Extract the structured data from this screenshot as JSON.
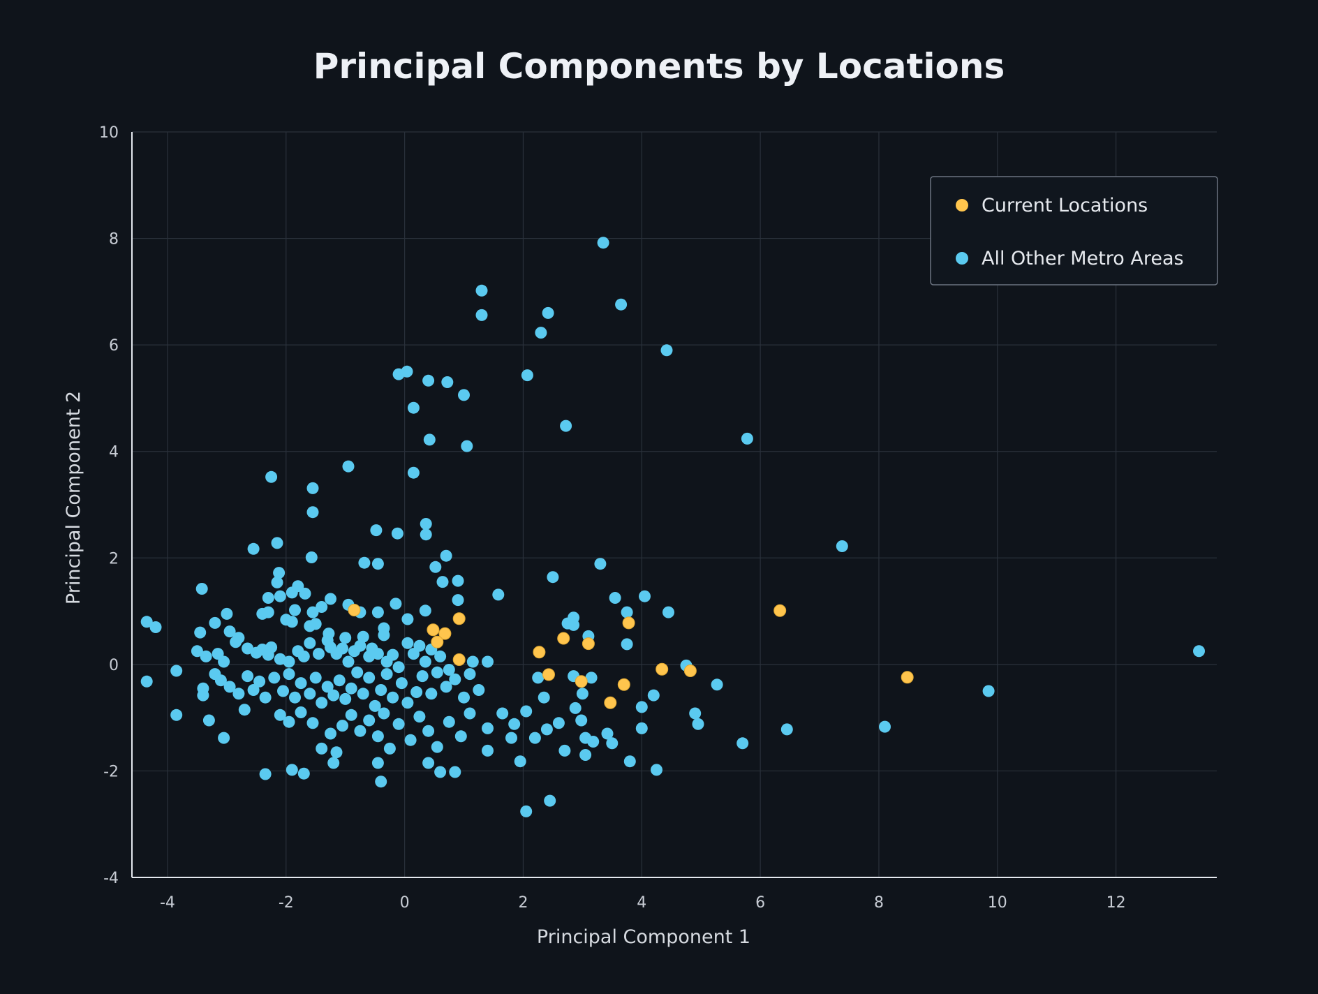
{
  "chart_data": {
    "type": "scatter",
    "title": "Principal Components by Locations",
    "xlabel": "Principal Component 1",
    "ylabel": "Principal Component 2",
    "xlim": [
      -4.6,
      13.7
    ],
    "ylim": [
      -4,
      10
    ],
    "x_ticks": [
      -4,
      -2,
      0,
      2,
      4,
      6,
      8,
      10,
      12
    ],
    "y_ticks": [
      -4,
      -2,
      0,
      2,
      4,
      6,
      8,
      10
    ],
    "grid": true,
    "legend_position": "top-right",
    "series": [
      {
        "name": "Current Locations",
        "color": "#ffc54d",
        "points": [
          [
            -0.85,
            1.02
          ],
          [
            0.48,
            0.65
          ],
          [
            0.68,
            0.58
          ],
          [
            0.92,
            0.86
          ],
          [
            0.55,
            0.42
          ],
          [
            0.92,
            0.09
          ],
          [
            2.27,
            0.23
          ],
          [
            2.68,
            0.49
          ],
          [
            3.1,
            0.39
          ],
          [
            3.78,
            0.78
          ],
          [
            2.43,
            -0.19
          ],
          [
            2.98,
            -0.32
          ],
          [
            3.7,
            -0.38
          ],
          [
            3.47,
            -0.72
          ],
          [
            4.34,
            -0.09
          ],
          [
            4.82,
            -0.12
          ],
          [
            6.33,
            1.01
          ],
          [
            8.48,
            -0.24
          ]
        ]
      },
      {
        "name": "All Other Metro Areas",
        "color": "#5bcaf0",
        "points": [
          [
            3.35,
            7.92
          ],
          [
            1.3,
            7.02
          ],
          [
            1.3,
            6.56
          ],
          [
            2.42,
            6.6
          ],
          [
            2.3,
            6.23
          ],
          [
            3.65,
            6.76
          ],
          [
            4.42,
            5.9
          ],
          [
            -0.1,
            5.45
          ],
          [
            0.04,
            5.5
          ],
          [
            0.15,
            4.82
          ],
          [
            0.4,
            5.33
          ],
          [
            0.72,
            5.3
          ],
          [
            1.0,
            5.06
          ],
          [
            2.07,
            5.43
          ],
          [
            2.72,
            4.48
          ],
          [
            0.42,
            4.22
          ],
          [
            1.05,
            4.1
          ],
          [
            5.78,
            4.24
          ],
          [
            -0.95,
            3.72
          ],
          [
            -2.25,
            3.52
          ],
          [
            -1.55,
            3.31
          ],
          [
            -1.55,
            2.86
          ],
          [
            0.15,
            3.6
          ],
          [
            -0.48,
            2.52
          ],
          [
            -0.12,
            2.46
          ],
          [
            0.36,
            2.64
          ],
          [
            0.36,
            2.44
          ],
          [
            -2.55,
            2.17
          ],
          [
            -2.15,
            2.28
          ],
          [
            -1.57,
            2.01
          ],
          [
            -0.68,
            1.91
          ],
          [
            -0.45,
            1.89
          ],
          [
            0.52,
            1.83
          ],
          [
            0.7,
            2.04
          ],
          [
            3.3,
            1.89
          ],
          [
            7.38,
            2.22
          ],
          [
            -2.12,
            1.72
          ],
          [
            -2.15,
            1.54
          ],
          [
            -1.9,
            1.35
          ],
          [
            -1.8,
            1.47
          ],
          [
            -1.68,
            1.33
          ],
          [
            -2.3,
            1.25
          ],
          [
            -2.1,
            1.28
          ],
          [
            -3.42,
            1.42
          ],
          [
            0.9,
            1.57
          ],
          [
            0.64,
            1.55
          ],
          [
            2.5,
            1.64
          ],
          [
            1.58,
            1.31
          ],
          [
            3.55,
            1.25
          ],
          [
            4.05,
            1.28
          ],
          [
            -1.25,
            1.23
          ],
          [
            -1.4,
            1.08
          ],
          [
            -1.55,
            0.98
          ],
          [
            -1.85,
            1.02
          ],
          [
            -2.4,
            0.95
          ],
          [
            -2.3,
            0.98
          ],
          [
            -0.95,
            1.12
          ],
          [
            -0.75,
            0.98
          ],
          [
            -0.15,
            1.14
          ],
          [
            0.35,
            1.01
          ],
          [
            0.9,
            1.21
          ],
          [
            -0.45,
            0.98
          ],
          [
            3.75,
            0.98
          ],
          [
            4.45,
            0.98
          ],
          [
            -4.35,
            0.8
          ],
          [
            -4.2,
            0.7
          ],
          [
            -3.45,
            0.6
          ],
          [
            -3.2,
            0.78
          ],
          [
            -3.0,
            0.95
          ],
          [
            -2.95,
            0.62
          ],
          [
            -2.8,
            0.5
          ],
          [
            -2.0,
            0.84
          ],
          [
            -1.9,
            0.8
          ],
          [
            -1.6,
            0.72
          ],
          [
            -1.5,
            0.76
          ],
          [
            -1.28,
            0.58
          ],
          [
            -1.0,
            0.5
          ],
          [
            -0.7,
            0.52
          ],
          [
            -0.35,
            0.68
          ],
          [
            -0.35,
            0.55
          ],
          [
            0.05,
            0.85
          ],
          [
            2.75,
            0.77
          ],
          [
            2.85,
            0.74
          ],
          [
            2.85,
            0.88
          ],
          [
            3.1,
            0.53
          ],
          [
            3.75,
            0.38
          ],
          [
            -3.5,
            0.25
          ],
          [
            -3.15,
            0.2
          ],
          [
            -3.35,
            0.15
          ],
          [
            -3.05,
            0.05
          ],
          [
            -2.85,
            0.42
          ],
          [
            -2.65,
            0.3
          ],
          [
            -2.5,
            0.22
          ],
          [
            -2.4,
            0.28
          ],
          [
            -2.3,
            0.18
          ],
          [
            -2.25,
            0.32
          ],
          [
            -2.1,
            0.1
          ],
          [
            -1.95,
            0.05
          ],
          [
            -1.8,
            0.25
          ],
          [
            -1.7,
            0.15
          ],
          [
            -1.6,
            0.4
          ],
          [
            -1.45,
            0.2
          ],
          [
            -1.3,
            0.45
          ],
          [
            -1.25,
            0.32
          ],
          [
            -1.15,
            0.2
          ],
          [
            -1.05,
            0.3
          ],
          [
            -0.95,
            0.05
          ],
          [
            -0.85,
            0.25
          ],
          [
            -0.75,
            0.35
          ],
          [
            -0.6,
            0.15
          ],
          [
            -0.55,
            0.3
          ],
          [
            -0.45,
            0.2
          ],
          [
            -0.3,
            0.05
          ],
          [
            -0.2,
            0.18
          ],
          [
            -0.1,
            -0.05
          ],
          [
            0.05,
            0.4
          ],
          [
            0.15,
            0.2
          ],
          [
            0.25,
            0.35
          ],
          [
            0.35,
            0.05
          ],
          [
            0.45,
            0.28
          ],
          [
            0.6,
            0.15
          ],
          [
            0.75,
            -0.1
          ],
          [
            1.15,
            0.05
          ],
          [
            1.4,
            0.05
          ],
          [
            -4.35,
            -0.32
          ],
          [
            -3.85,
            -0.12
          ],
          [
            -3.4,
            -0.45
          ],
          [
            -3.4,
            -0.58
          ],
          [
            -3.2,
            -0.18
          ],
          [
            -3.1,
            -0.3
          ],
          [
            -2.95,
            -0.42
          ],
          [
            -2.8,
            -0.55
          ],
          [
            -2.65,
            -0.22
          ],
          [
            -2.55,
            -0.48
          ],
          [
            -2.45,
            -0.32
          ],
          [
            -2.35,
            -0.62
          ],
          [
            -2.2,
            -0.25
          ],
          [
            -2.05,
            -0.5
          ],
          [
            -1.95,
            -0.18
          ],
          [
            -1.85,
            -0.62
          ],
          [
            -1.75,
            -0.35
          ],
          [
            -1.6,
            -0.55
          ],
          [
            -1.5,
            -0.25
          ],
          [
            -1.4,
            -0.72
          ],
          [
            -1.3,
            -0.42
          ],
          [
            -1.2,
            -0.58
          ],
          [
            -1.1,
            -0.3
          ],
          [
            -1.0,
            -0.65
          ],
          [
            -0.9,
            -0.45
          ],
          [
            -0.8,
            -0.15
          ],
          [
            -0.7,
            -0.55
          ],
          [
            -0.6,
            -0.25
          ],
          [
            -0.5,
            -0.78
          ],
          [
            -0.4,
            -0.48
          ],
          [
            -0.3,
            -0.18
          ],
          [
            -0.2,
            -0.62
          ],
          [
            -0.05,
            -0.35
          ],
          [
            0.05,
            -0.72
          ],
          [
            0.2,
            -0.52
          ],
          [
            0.3,
            -0.22
          ],
          [
            0.45,
            -0.55
          ],
          [
            0.55,
            -0.15
          ],
          [
            0.7,
            -0.42
          ],
          [
            0.85,
            -0.28
          ],
          [
            1.0,
            -0.62
          ],
          [
            1.1,
            -0.18
          ],
          [
            1.25,
            -0.48
          ],
          [
            2.25,
            -0.25
          ],
          [
            2.35,
            -0.62
          ],
          [
            2.85,
            -0.22
          ],
          [
            3.0,
            -0.55
          ],
          [
            3.15,
            -0.25
          ],
          [
            4.2,
            -0.58
          ],
          [
            4.75,
            -0.02
          ],
          [
            5.27,
            -0.38
          ],
          [
            -3.85,
            -0.95
          ],
          [
            -3.3,
            -1.05
          ],
          [
            -3.05,
            -1.38
          ],
          [
            -2.7,
            -0.85
          ],
          [
            -2.1,
            -0.95
          ],
          [
            -1.95,
            -1.08
          ],
          [
            -1.75,
            -0.9
          ],
          [
            -1.55,
            -1.1
          ],
          [
            -1.4,
            -1.58
          ],
          [
            -1.25,
            -1.3
          ],
          [
            -1.15,
            -1.65
          ],
          [
            -1.05,
            -1.15
          ],
          [
            -0.9,
            -0.95
          ],
          [
            -0.75,
            -1.25
          ],
          [
            -0.6,
            -1.05
          ],
          [
            -0.45,
            -1.35
          ],
          [
            -0.35,
            -0.92
          ],
          [
            -0.25,
            -1.58
          ],
          [
            -0.1,
            -1.12
          ],
          [
            0.1,
            -1.42
          ],
          [
            0.25,
            -0.98
          ],
          [
            0.4,
            -1.25
          ],
          [
            0.55,
            -1.55
          ],
          [
            0.75,
            -1.08
          ],
          [
            0.95,
            -1.35
          ],
          [
            1.1,
            -0.92
          ],
          [
            1.4,
            -1.2
          ],
          [
            1.65,
            -0.92
          ],
          [
            1.8,
            -1.38
          ],
          [
            1.85,
            -1.12
          ],
          [
            2.05,
            -0.88
          ],
          [
            2.2,
            -1.38
          ],
          [
            2.4,
            -1.22
          ],
          [
            2.6,
            -1.1
          ],
          [
            2.88,
            -0.82
          ],
          [
            2.98,
            -1.05
          ],
          [
            3.05,
            -1.38
          ],
          [
            3.18,
            -1.45
          ],
          [
            3.42,
            -1.3
          ],
          [
            4.0,
            -0.8
          ],
          [
            4.0,
            -1.2
          ],
          [
            4.9,
            -0.92
          ],
          [
            4.95,
            -1.12
          ],
          [
            5.7,
            -1.48
          ],
          [
            6.45,
            -1.22
          ],
          [
            8.1,
            -1.17
          ],
          [
            9.85,
            -0.5
          ],
          [
            13.4,
            0.25
          ],
          [
            -2.35,
            -2.06
          ],
          [
            -1.9,
            -1.98
          ],
          [
            -1.7,
            -2.05
          ],
          [
            -1.2,
            -1.85
          ],
          [
            -0.45,
            -1.85
          ],
          [
            -0.4,
            -2.2
          ],
          [
            0.4,
            -1.85
          ],
          [
            0.6,
            -2.02
          ],
          [
            0.85,
            -2.02
          ],
          [
            1.4,
            -1.62
          ],
          [
            1.95,
            -1.82
          ],
          [
            2.05,
            -2.76
          ],
          [
            2.7,
            -1.62
          ],
          [
            3.05,
            -1.7
          ],
          [
            2.45,
            -2.56
          ],
          [
            3.8,
            -1.82
          ],
          [
            4.25,
            -1.98
          ],
          [
            3.5,
            -1.48
          ]
        ]
      }
    ]
  }
}
